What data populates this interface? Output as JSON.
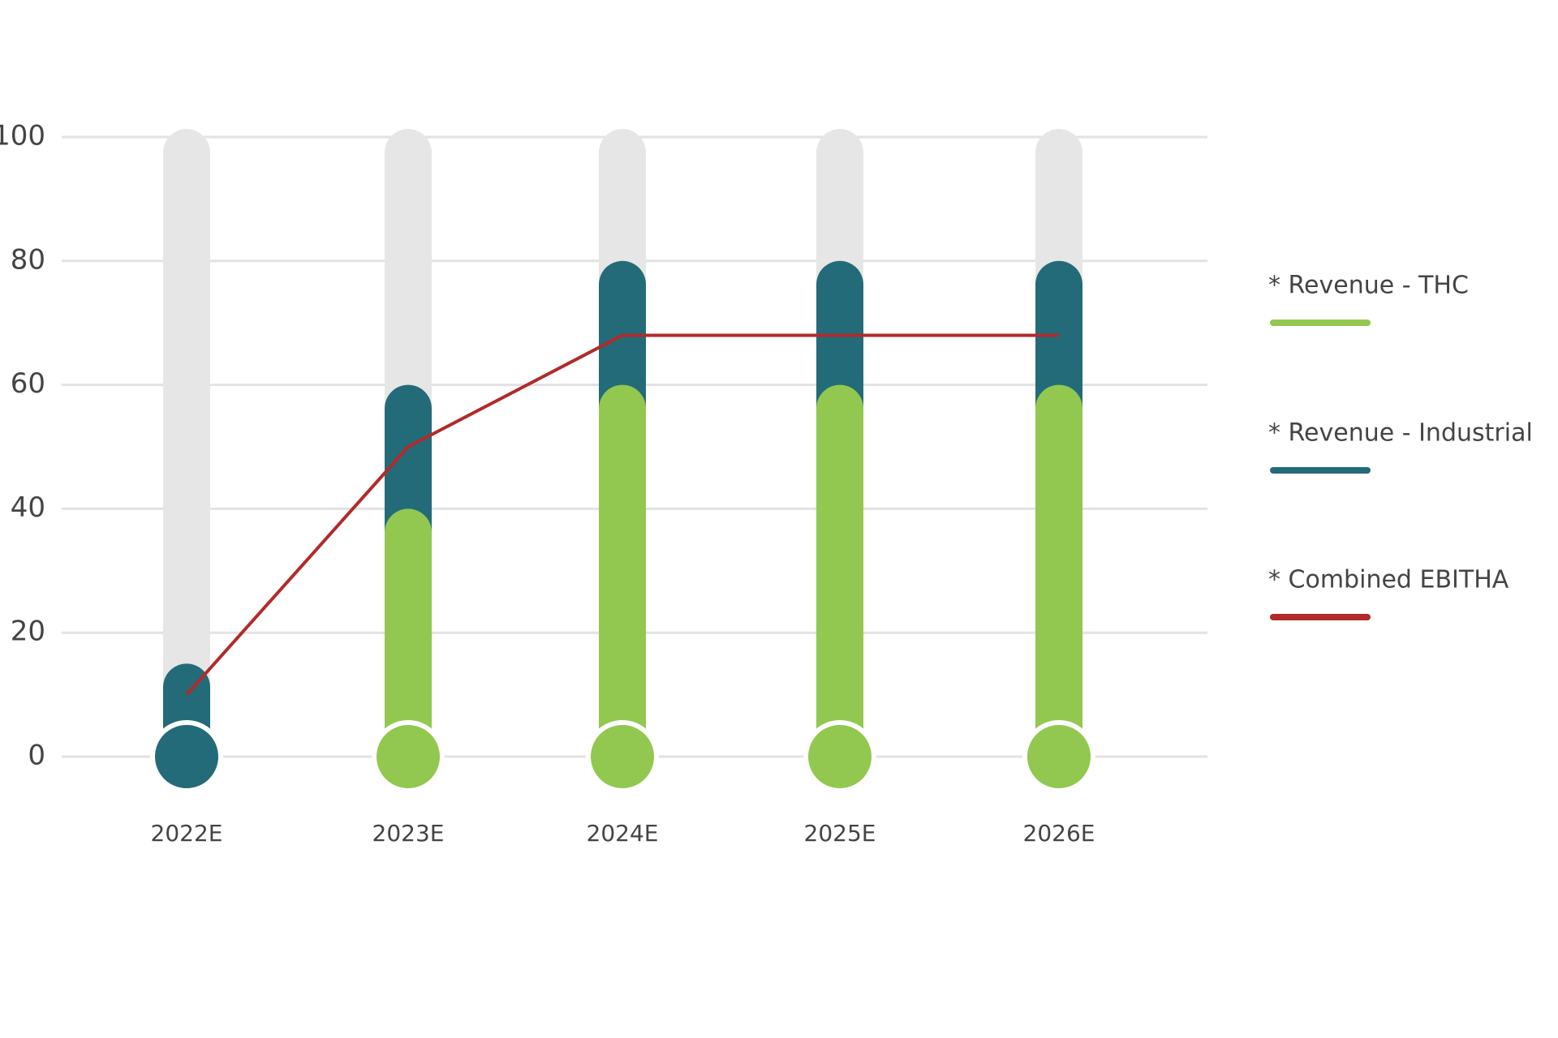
{
  "chart_data": {
    "type": "bar",
    "categories": [
      "2022E",
      "2023E",
      "2024E",
      "2025E",
      "2026E"
    ],
    "series": [
      {
        "name": "* Revenue - THC",
        "color": "#92c84f",
        "values": [
          0,
          40,
          60,
          60,
          60
        ]
      },
      {
        "name": "* Revenue - Industrial",
        "color": "#236b78",
        "values": [
          15,
          20,
          20,
          20,
          20
        ]
      },
      {
        "name": "* Combined EBITHA",
        "color": "#b22a2a",
        "type": "line",
        "values": [
          10,
          50,
          68,
          68,
          68
        ]
      }
    ],
    "ylim": [
      0,
      100
    ],
    "yticks": [
      0,
      20,
      40,
      60,
      80,
      100
    ],
    "grid": true
  }
}
